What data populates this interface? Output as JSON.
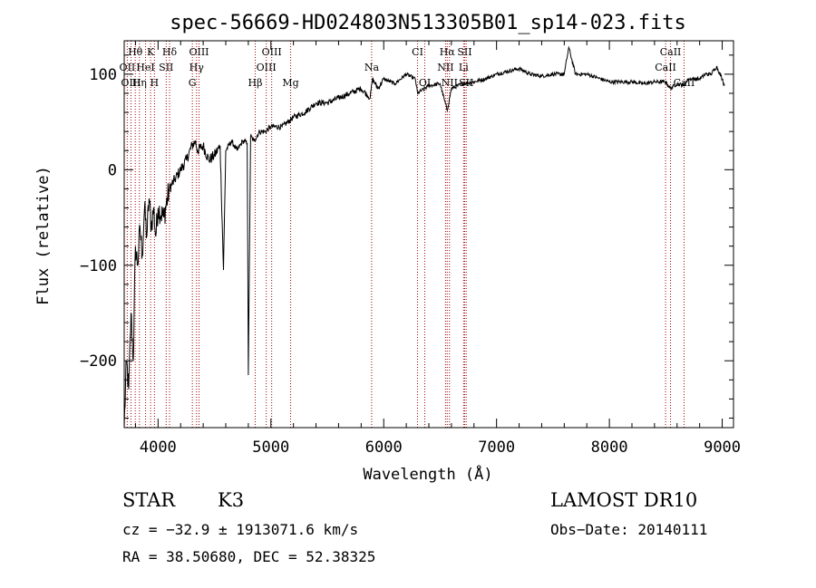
{
  "chart_data": {
    "type": "line",
    "title": "spec-56669-HD024803N513305B01_sp14-023.fits",
    "xlabel": "Wavelength (Å)",
    "ylabel": "Flux (relative)",
    "xlim": [
      3700,
      9100
    ],
    "ylim": [
      -270,
      135
    ],
    "xticks": [
      4000,
      5000,
      6000,
      7000,
      8000,
      9000
    ],
    "yticks": [
      100,
      0,
      -100,
      -200
    ],
    "ytick_labels": [
      "100",
      "0",
      "−100",
      "−200"
    ],
    "grid": false,
    "series": [
      {
        "x": [
          3700,
          3720,
          3740,
          3760,
          3780,
          3800,
          3820,
          3840,
          3860,
          3880,
          3900,
          3920,
          3940,
          3960,
          3980,
          4000,
          4050,
          4100,
          4150,
          4200,
          4250,
          4300,
          4330,
          4350,
          4400,
          4450,
          4500,
          4550,
          4580,
          4600,
          4650,
          4700,
          4750,
          4790,
          4800,
          4820,
          4850,
          4900,
          4950,
          5000,
          5100,
          5200,
          5300,
          5400,
          5500,
          5600,
          5700,
          5800,
          5880,
          5900,
          5950,
          6000,
          6100,
          6200,
          6280,
          6300,
          6400,
          6500,
          6540,
          6563,
          6600,
          6700,
          6800,
          6900,
          7000,
          7100,
          7200,
          7300,
          7400,
          7500,
          7600,
          7640,
          7700,
          7800,
          7900,
          8000,
          8100,
          8200,
          8300,
          8400,
          8500,
          8540,
          8600,
          8660,
          8700,
          8800,
          8850,
          8900,
          8950,
          9000,
          9020
        ],
        "y": [
          -270,
          -200,
          -230,
          -150,
          -200,
          -80,
          -100,
          -60,
          -90,
          -40,
          -70,
          -30,
          -60,
          -40,
          -70,
          -40,
          -50,
          -20,
          -10,
          0,
          10,
          25,
          30,
          20,
          25,
          10,
          15,
          25,
          -105,
          20,
          30,
          20,
          30,
          28,
          -215,
          35,
          30,
          40,
          40,
          45,
          45,
          55,
          60,
          70,
          70,
          75,
          80,
          85,
          75,
          95,
          85,
          95,
          90,
          100,
          95,
          80,
          88,
          90,
          72,
          62,
          85,
          90,
          92,
          95,
          100,
          103,
          106,
          100,
          98,
          100,
          100,
          128,
          100,
          100,
          96,
          92,
          92,
          92,
          90,
          92,
          92,
          85,
          90,
          88,
          95,
          95,
          100,
          100,
          108,
          95,
          88
        ]
      }
    ],
    "spectral_lines": [
      {
        "label": "Hθ",
        "row": 0,
        "x": 3798
      },
      {
        "label": "K",
        "row": 0,
        "x": 3934
      },
      {
        "label": "Hδ",
        "row": 0,
        "x": 4102
      },
      {
        "label": "OIII",
        "row": 0,
        "x": 4363
      },
      {
        "label": "OIII",
        "row": 0,
        "x": 5007
      },
      {
        "label": "CI",
        "row": 0,
        "x": 6300
      },
      {
        "label": "Hα",
        "row": 0,
        "x": 6563
      },
      {
        "label": "SII",
        "row": 0,
        "x": 6717
      },
      {
        "label": "CaII",
        "row": 0,
        "x": 8542
      },
      {
        "label": "OII",
        "row": 1,
        "x": 3727
      },
      {
        "label": "HeI",
        "row": 1,
        "x": 3889
      },
      {
        "label": "SII",
        "row": 1,
        "x": 4072
      },
      {
        "label": "Hγ",
        "row": 1,
        "x": 4341
      },
      {
        "label": "OIII",
        "row": 1,
        "x": 4959
      },
      {
        "label": "Na",
        "row": 1,
        "x": 5893
      },
      {
        "label": "NII",
        "row": 1,
        "x": 6548
      },
      {
        "label": "Li",
        "row": 1,
        "x": 6708
      },
      {
        "label": "CaII",
        "row": 1,
        "x": 8498
      },
      {
        "label": "OIII",
        "row": 2,
        "x": 3760
      },
      {
        "label": "Hη",
        "row": 2,
        "x": 3835
      },
      {
        "label": "H",
        "row": 2,
        "x": 3968
      },
      {
        "label": "G",
        "row": 2,
        "x": 4304
      },
      {
        "label": "Hβ",
        "row": 2,
        "x": 4861
      },
      {
        "label": "Mg",
        "row": 2,
        "x": 5175
      },
      {
        "label": "OI",
        "row": 2,
        "x": 6364
      },
      {
        "label": "NII",
        "row": 2,
        "x": 6583
      },
      {
        "label": "SII",
        "row": 2,
        "x": 6731
      },
      {
        "label": "CaII",
        "row": 2,
        "x": 8662
      }
    ],
    "line_markers_x": [
      3727,
      3760,
      3798,
      3835,
      3889,
      3934,
      3968,
      4072,
      4102,
      4304,
      4341,
      4363,
      4861,
      4959,
      5007,
      5175,
      5893,
      6300,
      6364,
      6548,
      6563,
      6583,
      6708,
      6717,
      6731,
      8498,
      8542,
      8662
    ],
    "line_marker_color": "#a00000"
  },
  "info": {
    "object_type": "STAR",
    "subclass": "K3",
    "survey": "LAMOST DR10",
    "cz": "cz = −32.9 ± 1913071.6 km/s",
    "obs_date": "Obs−Date: 20140111",
    "coords": "RA =  38.50680, DEC =  52.38325"
  }
}
